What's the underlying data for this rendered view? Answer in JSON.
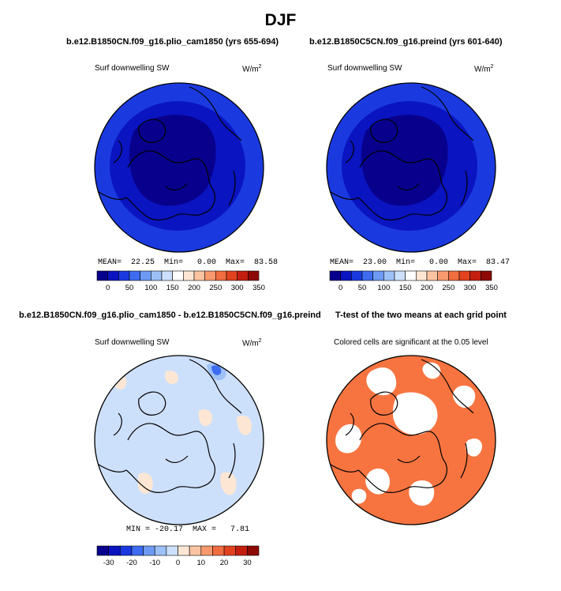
{
  "figure": {
    "title": "DJF",
    "colors": {
      "pos_palette": [
        "#08008c",
        "#0a14c0",
        "#1a3ae0",
        "#3d6cf0",
        "#6d9af4",
        "#9dc0f7",
        "#cde0fb",
        "#ffffff",
        "#fde7d4",
        "#fbc3a1",
        "#f89a6e",
        "#f06d3f",
        "#e2431e",
        "#c41e0f",
        "#8e0a05"
      ],
      "diff_palette": [
        "#08008c",
        "#0a14c0",
        "#1a3ae0",
        "#3d6cf0",
        "#6d9af4",
        "#9dc0f7",
        "#cde0fb",
        "#fde7d4",
        "#fbc3a1",
        "#f89a6e",
        "#f06d3f",
        "#e2431e",
        "#c41e0f",
        "#8e0a05"
      ],
      "ttest_color": "#f77440"
    }
  },
  "panels": {
    "p1": {
      "header": "b.e12.B1850CN.f09_g16.plio_cam1850 (yrs 655-694)",
      "variable": "Surf downwelling SW",
      "units": "W/m",
      "units_sup": "2",
      "stats": "MEAN=  22.25  Min=   0.00  Max=  83.58",
      "colorbar_ticks": [
        "0",
        "50",
        "100",
        "150",
        "200",
        "250",
        "300",
        "350"
      ]
    },
    "p2": {
      "header": "b.e12.B1850C5CN.f09_g16.preind (yrs 601-640)",
      "variable": "Surf downwelling SW",
      "units": "W/m",
      "units_sup": "2",
      "stats": "MEAN=  23.00  Min=   0.00  Max=  83.47",
      "colorbar_ticks": [
        "0",
        "50",
        "100",
        "150",
        "200",
        "250",
        "300",
        "350"
      ]
    },
    "p3": {
      "header": "b.e12.B1850CN.f09_g16.plio_cam1850 - b.e12.B1850C5CN.f09_g16.preind",
      "variable": "Surf downwelling SW",
      "units": "W/m",
      "units_sup": "2",
      "stats": "MIN = -20.17  MAX =   7.81",
      "colorbar_ticks": [
        "-30",
        "-20",
        "-10",
        "0",
        "10",
        "20",
        "30"
      ]
    },
    "p4": {
      "header": "T-test of the two means at each grid point",
      "subtitle": "Colored cells are significant at the 0.05 level"
    }
  },
  "chart_data": [
    {
      "type": "heatmap",
      "title": "b.e12.B1850CN.f09_g16.plio_cam1850 (yrs 655-694)",
      "variable": "Surf downwelling SW",
      "units": "W/m2",
      "projection": "north-polar-stereographic",
      "mean": 22.25,
      "min": 0.0,
      "max": 83.58,
      "colorbar_levels": [
        0,
        25,
        50,
        75,
        100,
        125,
        150,
        175,
        200,
        225,
        250,
        275,
        300,
        325,
        350
      ]
    },
    {
      "type": "heatmap",
      "title": "b.e12.B1850C5CN.f09_g16.preind (yrs 601-640)",
      "variable": "Surf downwelling SW",
      "units": "W/m2",
      "projection": "north-polar-stereographic",
      "mean": 23.0,
      "min": 0.0,
      "max": 83.47,
      "colorbar_levels": [
        0,
        25,
        50,
        75,
        100,
        125,
        150,
        175,
        200,
        225,
        250,
        275,
        300,
        325,
        350
      ]
    },
    {
      "type": "heatmap",
      "title": "b.e12.B1850CN.f09_g16.plio_cam1850 - b.e12.B1850C5CN.f09_g16.preind",
      "variable": "Surf downwelling SW",
      "units": "W/m2",
      "projection": "north-polar-stereographic",
      "min": -20.17,
      "max": 7.81,
      "colorbar_levels": [
        -35,
        -30,
        -25,
        -20,
        -15,
        -10,
        -5,
        0,
        5,
        10,
        15,
        20,
        25,
        30,
        35
      ]
    },
    {
      "type": "heatmap",
      "title": "T-test of the two means at each grid point",
      "subtitle": "Colored cells are significant at the 0.05 level",
      "projection": "north-polar-stereographic",
      "significance_level": 0.05
    }
  ]
}
